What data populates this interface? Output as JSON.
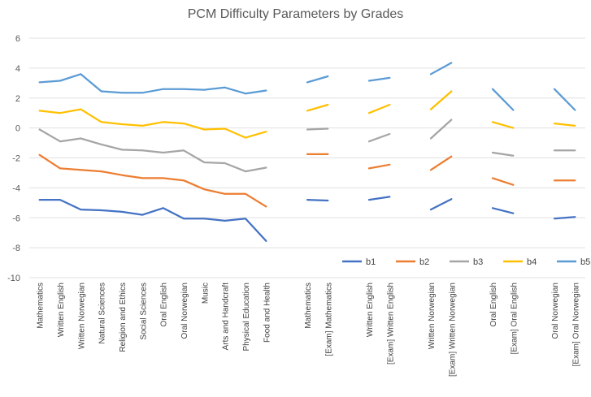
{
  "chart_data": {
    "type": "line",
    "title": "PCM Difficulty Parameters by Grades",
    "xlabel": "",
    "ylabel": "",
    "ylim": [
      -10,
      6
    ],
    "yticks": [
      6,
      4,
      2,
      0,
      -2,
      -4,
      -6,
      -8,
      -10
    ],
    "grid": "horizontal",
    "legend_position": "bottom-right",
    "categories": [
      "Mathematics",
      "Written English",
      "Written Norwegian",
      "Natural Sciences",
      "Religion and Ethics",
      "Social Sciences",
      "Oral English",
      "Oral Norwegian",
      "Music",
      "Arts and Handcraft",
      "Physical Education",
      "Food and Health",
      "",
      "Mathematics",
      "[Exam] Mathematics",
      "",
      "Written English",
      "[Exam] Written English",
      "",
      "Written Norwegian",
      "[Exam] Written Norwegian",
      "",
      "Oral English",
      "[Exam] Oral English",
      "",
      "Oral Norwegian",
      "[Exam] Oral Norwegian"
    ],
    "series": [
      {
        "name": "b1",
        "color": "#4472C4",
        "values": [
          -4.8,
          -4.8,
          -5.45,
          -5.5,
          -5.6,
          -5.8,
          -5.35,
          -6.05,
          -6.05,
          -6.2,
          -6.05,
          -7.55,
          null,
          -4.8,
          -4.85,
          null,
          -4.8,
          -4.6,
          null,
          -5.45,
          -4.75,
          null,
          -5.35,
          -5.7,
          null,
          -6.05,
          -5.95
        ]
      },
      {
        "name": "b2",
        "color": "#ED7D31",
        "values": [
          -1.8,
          -2.7,
          -2.8,
          -2.9,
          -3.15,
          -3.35,
          -3.35,
          -3.5,
          -4.1,
          -4.4,
          -4.4,
          -5.25,
          null,
          -1.75,
          -1.75,
          null,
          -2.7,
          -2.45,
          null,
          -2.8,
          -1.9,
          null,
          -3.35,
          -3.8,
          null,
          -3.5,
          -3.5
        ]
      },
      {
        "name": "b3",
        "color": "#A5A5A5",
        "values": [
          -0.1,
          -0.9,
          -0.7,
          -1.1,
          -1.45,
          -1.5,
          -1.65,
          -1.5,
          -2.3,
          -2.35,
          -2.9,
          -2.65,
          null,
          -0.1,
          -0.05,
          null,
          -0.9,
          -0.4,
          null,
          -0.7,
          0.55,
          null,
          -1.65,
          -1.85,
          null,
          -1.5,
          -1.5
        ]
      },
      {
        "name": "b4",
        "color": "#FFC000",
        "values": [
          1.15,
          1.0,
          1.25,
          0.4,
          0.25,
          0.15,
          0.4,
          0.3,
          -0.1,
          -0.05,
          -0.65,
          -0.25,
          null,
          1.15,
          1.55,
          null,
          1.0,
          1.55,
          null,
          1.25,
          2.45,
          null,
          0.4,
          0.0,
          null,
          0.3,
          0.15
        ]
      },
      {
        "name": "b5",
        "color": "#5B9BD5",
        "values": [
          3.05,
          3.15,
          3.6,
          2.45,
          2.35,
          2.35,
          2.6,
          2.6,
          2.55,
          2.7,
          2.3,
          2.5,
          null,
          3.05,
          3.45,
          null,
          3.15,
          3.35,
          null,
          3.6,
          4.35,
          null,
          2.6,
          1.2,
          null,
          2.6,
          1.2
        ]
      }
    ]
  }
}
